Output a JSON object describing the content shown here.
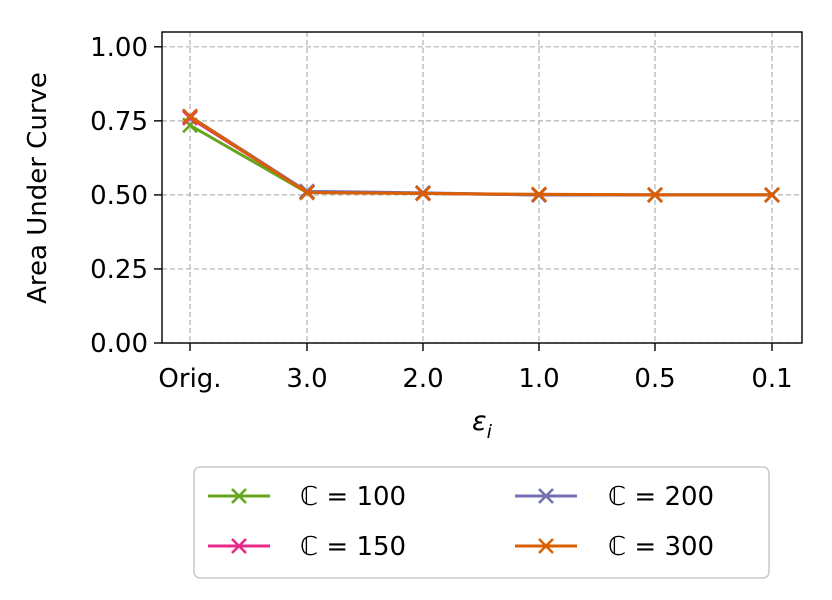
{
  "chart_data": {
    "type": "line",
    "categories": [
      "Orig.",
      "3.0",
      "2.0",
      "1.0",
      "0.5",
      "0.1"
    ],
    "xlabel": "ε",
    "xlabel_subscript": "i",
    "ylabel": "Area Under Curve",
    "ylim": [
      0,
      1.05
    ],
    "yticks": [
      0.0,
      0.25,
      0.5,
      0.75,
      1.0
    ],
    "ytick_labels": [
      "0.00",
      "0.25",
      "0.50",
      "0.75",
      "1.00"
    ],
    "grid": true,
    "legend_position": "below",
    "series": [
      {
        "name": "ℂ = 100",
        "color": "#66a61e",
        "marker": "x",
        "values": [
          0.735,
          0.508,
          0.505,
          0.5,
          0.5,
          0.5
        ]
      },
      {
        "name": "ℂ = 150",
        "color": "#e7298a",
        "marker": "x",
        "values": [
          0.76,
          0.51,
          0.505,
          0.5,
          0.5,
          0.5
        ]
      },
      {
        "name": "ℂ = 200",
        "color": "#7570b3",
        "marker": "x",
        "values": [
          0.765,
          0.512,
          0.507,
          0.5,
          0.5,
          0.5
        ]
      },
      {
        "name": "ℂ = 300",
        "color": "#d95f02",
        "marker": "x",
        "values": [
          0.765,
          0.508,
          0.505,
          0.502,
          0.5,
          0.5
        ]
      }
    ]
  }
}
